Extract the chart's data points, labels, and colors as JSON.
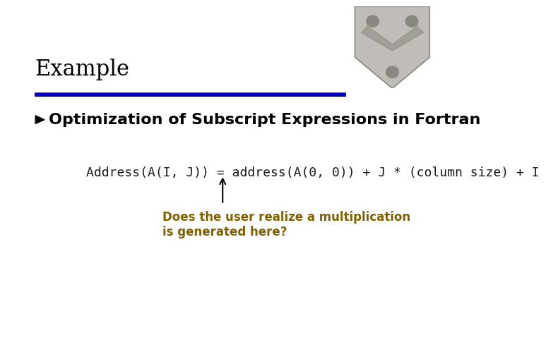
{
  "title": "Example",
  "title_fontsize": 22,
  "title_color": "#000000",
  "title_font": "serif",
  "line1_color": "#0000CC",
  "line2_color": "#000080",
  "bullet_text": "Optimization of Subscript Expressions in Fortran",
  "bullet_color": "#000000",
  "bullet_fontsize": 16,
  "bullet_font": "sans-serif",
  "formula_text": "Address(A(I, J)) = address(A(0, 0)) + J * (column size) + I",
  "formula_color": "#1a1a1a",
  "formula_fontsize": 13,
  "formula_font": "monospace",
  "annotation_text": "Does the user realize a multiplication\nis generated here?",
  "annotation_color": "#806000",
  "annotation_fontsize": 12,
  "annotation_font": "sans-serif",
  "bg_color": "#ffffff",
  "arrow_color": "#000000"
}
